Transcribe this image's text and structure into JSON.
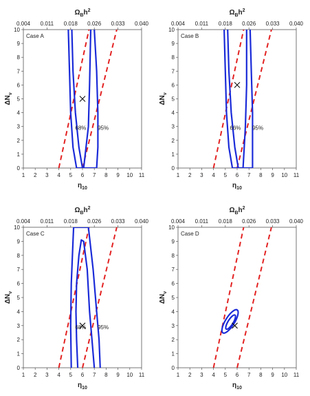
{
  "chart_data": [
    {
      "type": "line",
      "case_label": "Case A",
      "xlabel": "η10",
      "ylabel": "ΔNν",
      "top_label": "ΩBh2",
      "xlim": [
        1,
        11
      ],
      "ylim": [
        0,
        10
      ],
      "x_ticks": [
        "1",
        "2",
        "3",
        "4",
        "5",
        "6",
        "7",
        "8",
        "9",
        "10",
        "11"
      ],
      "y_ticks": [
        "0",
        "1",
        "2",
        "3",
        "4",
        "5",
        "6",
        "7",
        "8",
        "9",
        "10"
      ],
      "top_ticks": [
        "0.004",
        "0.011",
        "0.018",
        "0.026",
        "0.033",
        "0.040"
      ],
      "best_fit": {
        "x": 6.0,
        "y": 5.0
      },
      "annotations": [
        {
          "text": "68%",
          "x": 5.85,
          "y": 2.75
        },
        {
          "text": "95%",
          "x": 7.75,
          "y": 2.75
        }
      ],
      "dashed_lines": [
        {
          "name": "",
          "color": "#e32222",
          "points": [
            [
              4.0,
              0
            ],
            [
              6.55,
              10
            ]
          ]
        },
        {
          "name": "",
          "color": "#e32222",
          "points": [
            [
              6.0,
              0
            ],
            [
              8.9,
              10
            ]
          ]
        }
      ],
      "contours": [
        {
          "name": "68%",
          "color": "#1a2bd8",
          "points": [
            [
              5.1,
              10
            ],
            [
              5.2,
              7
            ],
            [
              5.4,
              4
            ],
            [
              5.7,
              1.5
            ],
            [
              6.0,
              0
            ],
            [
              6.1,
              0
            ],
            [
              6.5,
              3
            ],
            [
              6.6,
              6
            ],
            [
              6.7,
              10
            ]
          ]
        },
        {
          "name": "95%",
          "color": "#1a2bd8",
          "points": [
            [
              4.8,
              10
            ],
            [
              4.9,
              7
            ],
            [
              5.0,
              4
            ],
            [
              5.2,
              1.5
            ],
            [
              5.5,
              0
            ],
            [
              7.2,
              0
            ],
            [
              7.3,
              1.5
            ],
            [
              7.3,
              4
            ],
            [
              7.2,
              7
            ],
            [
              7.0,
              10
            ]
          ]
        }
      ]
    },
    {
      "type": "line",
      "case_label": "Case B",
      "xlabel": "η10",
      "ylabel": "ΔNν",
      "top_label": "ΩBh2",
      "xlim": [
        1,
        11
      ],
      "ylim": [
        0,
        10
      ],
      "x_ticks": [
        "1",
        "2",
        "3",
        "4",
        "5",
        "6",
        "7",
        "8",
        "9",
        "10",
        "11"
      ],
      "y_ticks": [
        "0",
        "1",
        "2",
        "3",
        "4",
        "5",
        "6",
        "7",
        "8",
        "9",
        "10"
      ],
      "top_ticks": [
        "0.004",
        "0.011",
        "0.018",
        "0.026",
        "0.033",
        "0.040"
      ],
      "best_fit": {
        "x": 6.0,
        "y": 6.0
      },
      "annotations": [
        {
          "text": "66%",
          "x": 5.85,
          "y": 2.75
        },
        {
          "text": "95%",
          "x": 7.75,
          "y": 2.75
        }
      ],
      "dashed_lines": [
        {
          "name": "",
          "color": "#e32222",
          "points": [
            [
              4.0,
              0
            ],
            [
              6.55,
              10
            ]
          ]
        },
        {
          "name": "",
          "color": "#e32222",
          "points": [
            [
              6.0,
              0
            ],
            [
              8.9,
              10
            ]
          ]
        }
      ],
      "contours": [
        {
          "name": "66%",
          "color": "#1a2bd8",
          "points": [
            [
              5.2,
              10
            ],
            [
              5.3,
              7
            ],
            [
              5.5,
              4
            ],
            [
              5.8,
              1.5
            ],
            [
              6.1,
              0
            ],
            [
              6.5,
              0
            ],
            [
              6.7,
              3
            ],
            [
              6.8,
              6
            ],
            [
              6.8,
              10
            ]
          ]
        },
        {
          "name": "95%",
          "color": "#1a2bd8",
          "points": [
            [
              4.9,
              10
            ],
            [
              5.0,
              7
            ],
            [
              5.1,
              4
            ],
            [
              5.3,
              1.5
            ],
            [
              5.6,
              0
            ],
            [
              7.3,
              0
            ],
            [
              7.3,
              1.5
            ],
            [
              7.3,
              4
            ],
            [
              7.2,
              7
            ],
            [
              7.1,
              10
            ]
          ]
        }
      ]
    },
    {
      "type": "line",
      "case_label": "Case C",
      "xlabel": "η10",
      "ylabel": "ΔNν",
      "top_label": "ΩBh2",
      "xlim": [
        1,
        11
      ],
      "ylim": [
        0,
        10
      ],
      "x_ticks": [
        "1",
        "2",
        "3",
        "4",
        "5",
        "6",
        "7",
        "8",
        "9",
        "10",
        "11"
      ],
      "y_ticks": [
        "0",
        "1",
        "2",
        "3",
        "4",
        "5",
        "6",
        "7",
        "8",
        "9",
        "10"
      ],
      "top_ticks": [
        "0.004",
        "0.011",
        "0.018",
        "0.026",
        "0.033",
        "0.040"
      ],
      "best_fit": {
        "x": 6.0,
        "y": 3.0
      },
      "annotations": [
        {
          "text": "68%",
          "x": 5.85,
          "y": 2.75
        },
        {
          "text": "95%",
          "x": 7.75,
          "y": 2.75
        }
      ],
      "dashed_lines": [
        {
          "name": "",
          "color": "#e32222",
          "points": [
            [
              4.0,
              0
            ],
            [
              6.55,
              10
            ]
          ]
        },
        {
          "name": "",
          "color": "#e32222",
          "points": [
            [
              6.0,
              0
            ],
            [
              8.9,
              10
            ]
          ]
        }
      ],
      "contours": [
        {
          "name": "68%",
          "color": "#1a2bd8",
          "points": [
            [
              5.6,
              0
            ],
            [
              5.5,
              2
            ],
            [
              5.45,
              4
            ],
            [
              5.5,
              6
            ],
            [
              5.7,
              8
            ],
            [
              5.9,
              9.1
            ],
            [
              6.1,
              9
            ],
            [
              6.4,
              7
            ],
            [
              6.6,
              4
            ],
            [
              6.8,
              2
            ],
            [
              7.0,
              0
            ]
          ]
        },
        {
          "name": "95%",
          "color": "#1a2bd8",
          "points": [
            [
              5.05,
              0
            ],
            [
              5.0,
              3
            ],
            [
              5.05,
              6
            ],
            [
              5.2,
              9
            ],
            [
              5.25,
              10
            ],
            [
              6.5,
              10
            ],
            [
              6.9,
              7
            ],
            [
              7.2,
              4
            ],
            [
              7.4,
              2
            ],
            [
              7.5,
              0
            ]
          ]
        }
      ]
    },
    {
      "type": "line",
      "case_label": "Case D",
      "xlabel": "η10",
      "ylabel": "ΔNν",
      "top_label": "ΩBh2",
      "xlim": [
        1,
        11
      ],
      "ylim": [
        0,
        10
      ],
      "x_ticks": [
        "1",
        "2",
        "3",
        "4",
        "5",
        "6",
        "7",
        "8",
        "9",
        "10",
        "11"
      ],
      "y_ticks": [
        "0",
        "1",
        "2",
        "3",
        "4",
        "5",
        "6",
        "7",
        "8",
        "9",
        "10"
      ],
      "top_ticks": [
        "0.004",
        "0.011",
        "0.018",
        "0.026",
        "0.033",
        "0.040"
      ],
      "best_fit": {
        "x": 5.8,
        "y": 3.0
      },
      "annotations": [],
      "dashed_lines": [
        {
          "name": "",
          "color": "#e32222",
          "points": [
            [
              4.0,
              0
            ],
            [
              6.55,
              10
            ]
          ]
        },
        {
          "name": "",
          "color": "#e32222",
          "points": [
            [
              6.0,
              0
            ],
            [
              8.9,
              10
            ]
          ]
        }
      ],
      "contours": [
        {
          "name": "",
          "color": "#1a2bd8",
          "ellipse": {
            "cx": 5.4,
            "cy": 3.3,
            "rx": 0.95,
            "ry": 0.35,
            "angle": -58
          }
        },
        {
          "name": "",
          "color": "#1a2bd8",
          "ellipse": {
            "cx": 5.45,
            "cy": 3.25,
            "rx": 0.58,
            "ry": 0.2,
            "angle": -58
          }
        }
      ]
    }
  ]
}
